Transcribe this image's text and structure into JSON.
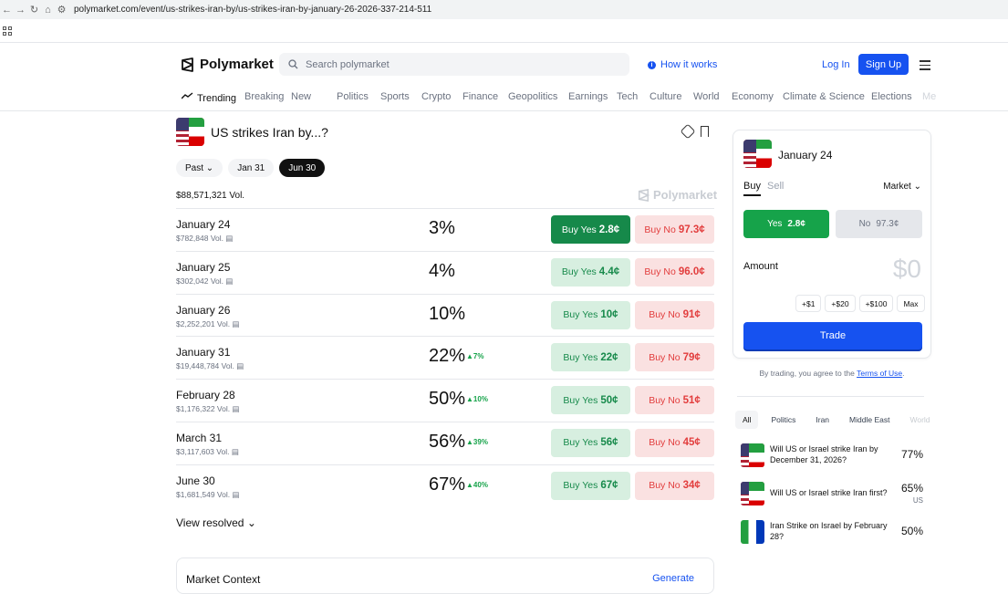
{
  "browser": {
    "url": "polymarket.com/event/us-strikes-iran-by/us-strikes-iran-by-january-26-2026-337-214-511"
  },
  "header": {
    "brand": "Polymarket",
    "search_placeholder": "Search polymarket",
    "how_it_works": "How it works",
    "login": "Log In",
    "signup": "Sign Up"
  },
  "categories": [
    "Trending",
    "Breaking",
    "New",
    "Politics",
    "Sports",
    "Crypto",
    "Finance",
    "Geopolitics",
    "Earnings",
    "Tech",
    "Culture",
    "World",
    "Economy",
    "Climate & Science",
    "Elections",
    "Me"
  ],
  "event": {
    "title": "US strikes Iran by...?",
    "filters": [
      "Past",
      "Jan 31",
      "Jun 30"
    ],
    "volume": "$88,571,321 Vol.",
    "watermark": "Polymarket"
  },
  "markets": [
    {
      "name": "January 24",
      "vol": "$782,848 Vol.",
      "pct": "3%",
      "chg": "",
      "yes_label": "Buy Yes",
      "yes": "2.8¢",
      "no_label": "Buy No",
      "no": "97.3¢"
    },
    {
      "name": "January 25",
      "vol": "$302,042 Vol.",
      "pct": "4%",
      "chg": "",
      "yes_label": "Buy Yes",
      "yes": "4.4¢",
      "no_label": "Buy No",
      "no": "96.0¢"
    },
    {
      "name": "January 26",
      "vol": "$2,252,201 Vol.",
      "pct": "10%",
      "chg": "",
      "yes_label": "Buy Yes",
      "yes": "10¢",
      "no_label": "Buy No",
      "no": "91¢"
    },
    {
      "name": "January 31",
      "vol": "$19,448,784 Vol.",
      "pct": "22%",
      "chg": "▲7%",
      "yes_label": "Buy Yes",
      "yes": "22¢",
      "no_label": "Buy No",
      "no": "79¢"
    },
    {
      "name": "February 28",
      "vol": "$1,176,322 Vol.",
      "pct": "50%",
      "chg": "▲10%",
      "yes_label": "Buy Yes",
      "yes": "50¢",
      "no_label": "Buy No",
      "no": "51¢"
    },
    {
      "name": "March 31",
      "vol": "$3,117,603 Vol.",
      "pct": "56%",
      "chg": "▲39%",
      "yes_label": "Buy Yes",
      "yes": "56¢",
      "no_label": "Buy No",
      "no": "45¢"
    },
    {
      "name": "June 30",
      "vol": "$1,681,549 Vol.",
      "pct": "67%",
      "chg": "▲40%",
      "yes_label": "Buy Yes",
      "yes": "67¢",
      "no_label": "Buy No",
      "no": "34¢"
    }
  ],
  "view_resolved": "View resolved",
  "context": {
    "title": "Market Context",
    "generate": "Generate"
  },
  "panel": {
    "title": "January 24",
    "buy": "Buy",
    "sell": "Sell",
    "market": "Market",
    "yes_label": "Yes",
    "yes_price": "2.8¢",
    "no_label": "No",
    "no_price": "97.3¢",
    "amount": "Amount",
    "amount_value": "$0",
    "chips": [
      "+$1",
      "+$20",
      "+$100",
      "Max"
    ],
    "trade": "Trade"
  },
  "terms": {
    "prefix": "By trading, you agree to the ",
    "link": "Terms of Use",
    "suffix": "."
  },
  "related_tabs": [
    "All",
    "Politics",
    "Iran",
    "Middle East",
    "World"
  ],
  "related": [
    {
      "title": "Will US or Israel strike Iran by December 31, 2026?",
      "pct": "77%",
      "sub": ""
    },
    {
      "title": "Will US or Israel strike Iran first?",
      "pct": "65%",
      "sub": "US"
    },
    {
      "title": "Iran Strike on Israel by February 28?",
      "pct": "50%",
      "sub": ""
    }
  ],
  "colors": {
    "accent": "#1652f0",
    "yes": "#16a34a",
    "no": "#e23d3d"
  }
}
